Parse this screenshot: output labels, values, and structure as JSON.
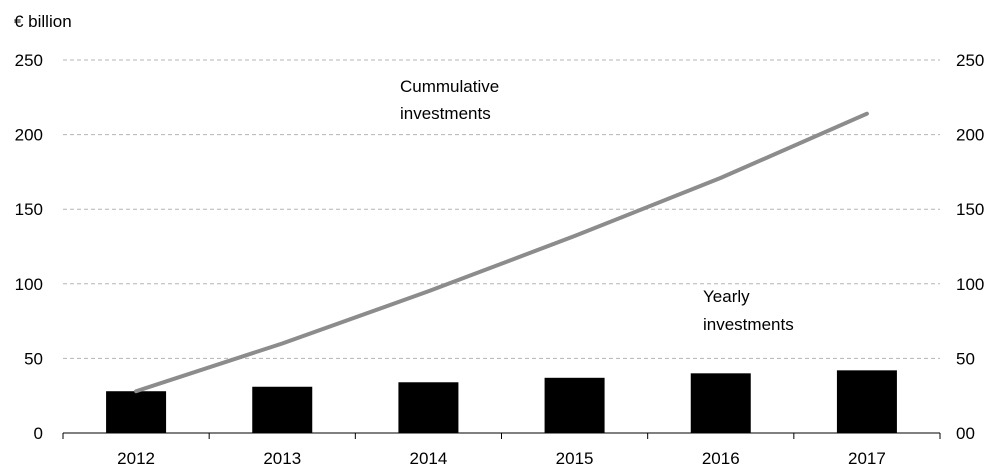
{
  "chart_data": {
    "type": "bar",
    "unit_label": "€ billion",
    "categories": [
      "2012",
      "2013",
      "2014",
      "2015",
      "2016",
      "2017"
    ],
    "series": [
      {
        "name": "Yearly investments",
        "type": "bar",
        "values": [
          28,
          31,
          34,
          37,
          40,
          42
        ],
        "color": "#000000"
      },
      {
        "name": "Cummulative investments",
        "type": "line",
        "values": [
          28,
          60,
          95,
          132,
          171,
          214
        ],
        "color": "#8c8c8c"
      }
    ],
    "ylim": [
      0,
      250
    ],
    "y_ticks_left": [
      "0",
      "50",
      "100",
      "150",
      "200",
      "250"
    ],
    "y_ticks_right": [
      "00",
      "50",
      "100",
      "150",
      "200",
      "250"
    ],
    "grid": "dashed horizontal",
    "annotations": [
      {
        "lines": [
          "Cummulative",
          "investments"
        ]
      },
      {
        "lines": [
          "Yearly",
          "investments"
        ]
      }
    ]
  }
}
